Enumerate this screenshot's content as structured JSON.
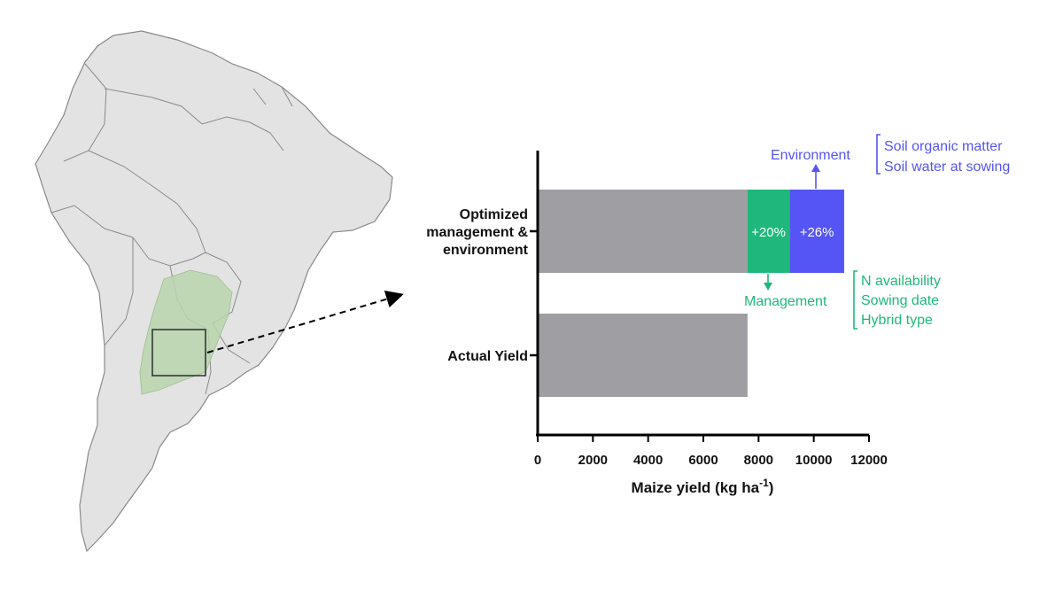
{
  "colors": {
    "base": "#9e9ea3",
    "management": "#1fb87a",
    "environment": "#5555f5",
    "map_land": "#e3e3e3",
    "map_border": "#8a8a8a",
    "region": "#b9d5ad"
  },
  "chart_data": {
    "type": "bar",
    "orientation": "horizontal",
    "stacked": true,
    "categories": [
      "Optimized management & environment",
      "Actual Yield"
    ],
    "category_lines": [
      [
        "Optimized",
        "management &",
        "environment"
      ],
      [
        "Actual Yield"
      ]
    ],
    "series": [
      {
        "key": "base",
        "values": [
          7600,
          7600
        ]
      },
      {
        "key": "management",
        "values": [
          1520,
          0
        ],
        "label": "+20%"
      },
      {
        "key": "environment",
        "values": [
          1980,
          0
        ],
        "label": "+26%"
      }
    ],
    "xlabel_main": "Maize yield (kg ha",
    "xlabel_sup": "-1",
    "xlabel_end": ")",
    "xlim": [
      0,
      12000
    ],
    "xticks": [
      "0",
      "2000",
      "4000",
      "6000",
      "8000",
      "10000",
      "12000"
    ],
    "xtick_values": [
      0,
      2000,
      4000,
      6000,
      8000,
      10000,
      12000
    ],
    "grid": false,
    "annotations": {
      "environment": {
        "title": "Environment",
        "items": [
          "Soil organic matter",
          "Soil water at sowing"
        ]
      },
      "management": {
        "title": "Management",
        "items": [
          "N availability",
          "Sowing date",
          "Hybrid type"
        ]
      }
    }
  }
}
